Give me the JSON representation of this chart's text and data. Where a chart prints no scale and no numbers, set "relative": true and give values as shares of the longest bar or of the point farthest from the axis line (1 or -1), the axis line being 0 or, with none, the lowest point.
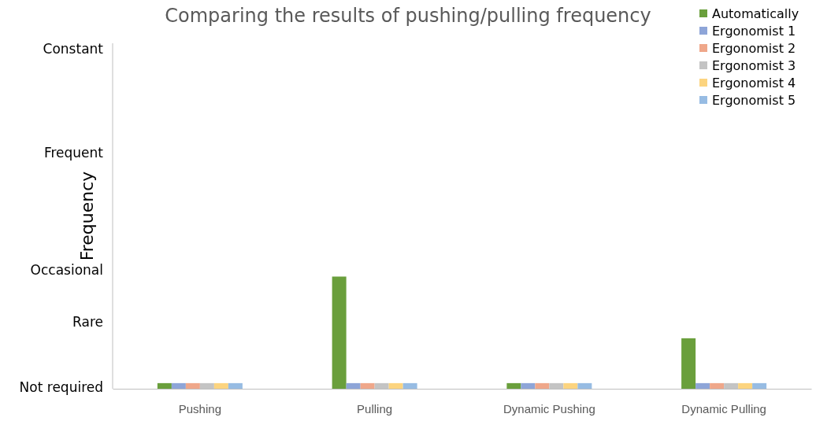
{
  "chart_data": {
    "type": "bar",
    "title": "Comparing the results of pushing/pulling frequency",
    "ylabel": "Frequency",
    "categories": [
      "Pushing",
      "Pulling",
      "Dynamic Pushing",
      "Dynamic Pulling"
    ],
    "series": [
      {
        "name": "Automatically",
        "color": "#6a9f3c",
        "values": [
          0.05,
          1,
          0.05,
          0.45
        ]
      },
      {
        "name": "Ergonomist 1",
        "color": "#8ea5d8",
        "values": [
          0.05,
          0.05,
          0.05,
          0.05
        ]
      },
      {
        "name": "Ergonomist 2",
        "color": "#efa78a",
        "values": [
          0.05,
          0.05,
          0.05,
          0.05
        ]
      },
      {
        "name": "Ergonomist 3",
        "color": "#c4c4c4",
        "values": [
          0.05,
          0.05,
          0.05,
          0.05
        ]
      },
      {
        "name": "Ergonomist 4",
        "color": "#fcd47f",
        "values": [
          0.05,
          0.05,
          0.05,
          0.05
        ]
      },
      {
        "name": "Ergonomist 5",
        "color": "#97bce3",
        "values": [
          0.05,
          0.05,
          0.05,
          0.05
        ]
      }
    ],
    "relative": true,
    "annotations": [
      "Not required",
      "Rare",
      "Occasional",
      "Frequent",
      "Constant"
    ],
    "legend": "top right"
  }
}
